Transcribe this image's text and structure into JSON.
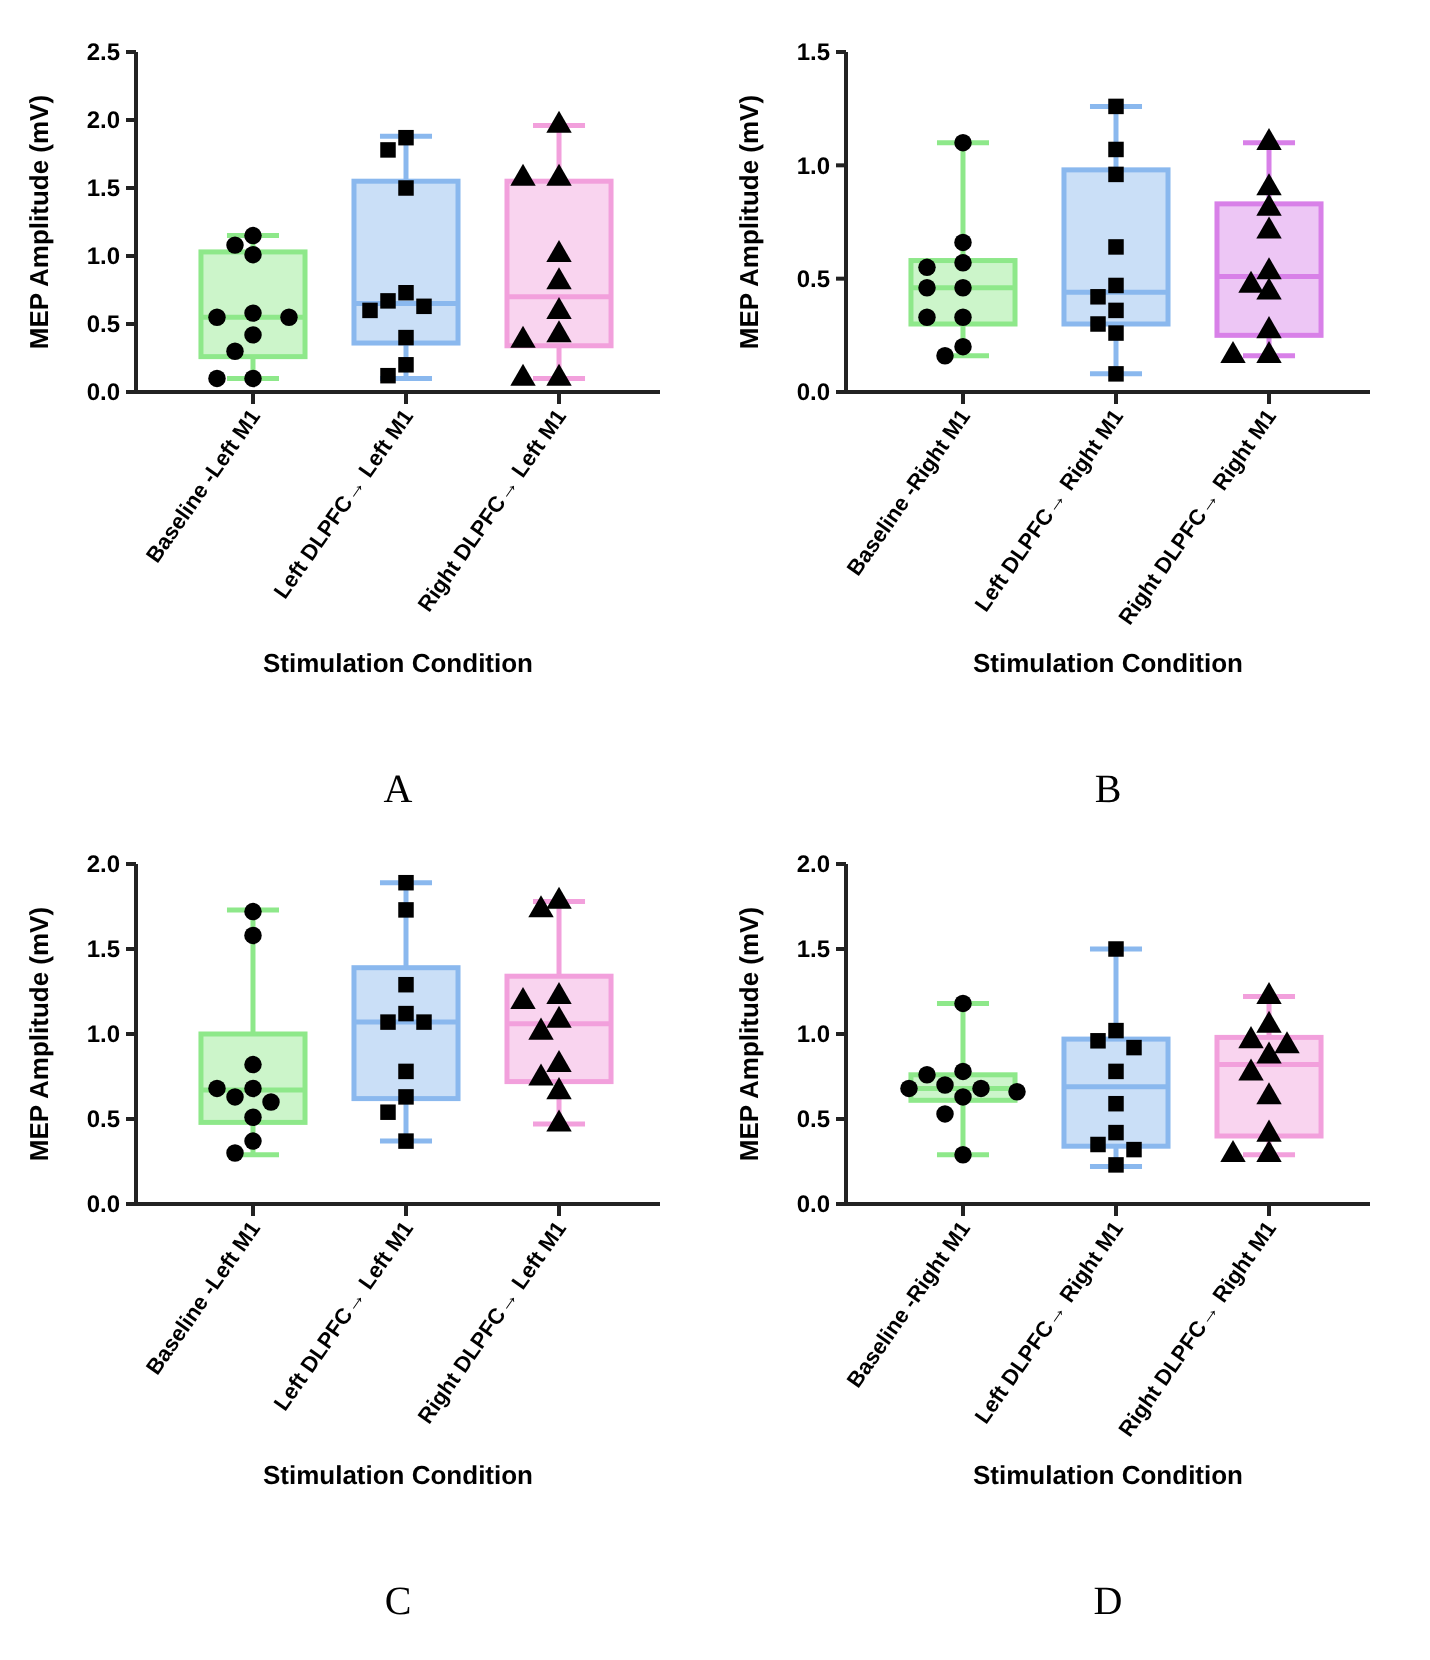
{
  "chart_data": [
    {
      "type": "box",
      "categories": [
        "Baseline -Left M1",
        "Left DLPFC→ Left M1",
        "Right DLPFC→ Left M1"
      ],
      "ylabel": "MEP Amplitude (mV)",
      "xlabel": "Stimulation Condition",
      "annotations": [
        "A"
      ],
      "ylim": [
        0,
        2.5
      ],
      "yticks": [
        {
          "value": 0,
          "label": "0.0"
        },
        {
          "value": 0.5,
          "label": "0.5"
        },
        {
          "value": 1,
          "label": "1.0"
        },
        {
          "value": 1.5,
          "label": "1.5"
        },
        {
          "value": 2,
          "label": "2.0"
        },
        {
          "value": 2.5,
          "label": "2.5"
        }
      ],
      "series": [
        {
          "type": "box",
          "colors": [
            "#8ee88a",
            "#8ab8ee",
            "#f2a0dc"
          ],
          "boxes": [
            {
              "low": 0.1,
              "q1": 0.26,
              "median": 0.55,
              "q3": 1.03,
              "high": 1.15
            },
            {
              "low": 0.1,
              "q1": 0.36,
              "median": 0.65,
              "q3": 1.55,
              "high": 1.88
            },
            {
              "low": 0.1,
              "q1": 0.34,
              "median": 0.7,
              "q3": 1.55,
              "high": 1.96
            }
          ]
        },
        {
          "type": "scatter",
          "marker": "circle",
          "color": "#000000",
          "x": [
            "Baseline -Left M1",
            "Baseline -Left M1",
            "Baseline -Left M1",
            "Baseline -Left M1",
            "Baseline -Left M1",
            "Baseline -Left M1",
            "Baseline -Left M1",
            "Baseline -Left M1",
            "Baseline -Left M1",
            "Baseline -Left M1"
          ],
          "values": [
            1.15,
            1.08,
            1.01,
            0.58,
            0.55,
            0.55,
            0.42,
            0.3,
            0.1,
            0.1
          ]
        },
        {
          "type": "scatter",
          "marker": "square",
          "color": "#000000",
          "x": [
            "Left DLPFC→ Left M1",
            "Left DLPFC→ Left M1",
            "Left DLPFC→ Left M1",
            "Left DLPFC→ Left M1",
            "Left DLPFC→ Left M1",
            "Left DLPFC→ Left M1",
            "Left DLPFC→ Left M1",
            "Left DLPFC→ Left M1",
            "Left DLPFC→ Left M1",
            "Left DLPFC→ Left M1"
          ],
          "values": [
            1.87,
            1.78,
            1.5,
            0.73,
            0.67,
            0.63,
            0.6,
            0.4,
            0.2,
            0.12
          ]
        },
        {
          "type": "scatter",
          "marker": "triangle",
          "color": "#000000",
          "x": [
            "Right DLPFC→ Left M1",
            "Right DLPFC→ Left M1",
            "Right DLPFC→ Left M1",
            "Right DLPFC→ Left M1",
            "Right DLPFC→ Left M1",
            "Right DLPFC→ Left M1",
            "Right DLPFC→ Left M1",
            "Right DLPFC→ Left M1",
            "Right DLPFC→ Left M1",
            "Right DLPFC→ Left M1"
          ],
          "values": [
            1.96,
            1.57,
            1.57,
            1.01,
            0.81,
            0.59,
            0.42,
            0.38,
            0.1,
            0.1
          ]
        }
      ]
    },
    {
      "type": "box",
      "categories": [
        "Baseline -Right M1",
        "Left DLPFC→ Right M1",
        "Right DLPFC→ Right M1"
      ],
      "ylabel": "MEP Amplitude (mV)",
      "xlabel": "Stimulation Condition",
      "annotations": [
        "B"
      ],
      "ylim": [
        0,
        1.5
      ],
      "yticks": [
        {
          "value": 0,
          "label": "0.0"
        },
        {
          "value": 0.5,
          "label": "0.5"
        },
        {
          "value": 1,
          "label": "1.0"
        },
        {
          "value": 1.5,
          "label": "1.5"
        }
      ],
      "series": [
        {
          "type": "box",
          "colors": [
            "#8ee88a",
            "#8ab8ee",
            "#d880e8"
          ],
          "boxes": [
            {
              "low": 0.16,
              "q1": 0.3,
              "median": 0.46,
              "q3": 0.58,
              "high": 1.1
            },
            {
              "low": 0.08,
              "q1": 0.3,
              "median": 0.44,
              "q3": 0.98,
              "high": 1.26
            },
            {
              "low": 0.16,
              "q1": 0.25,
              "median": 0.51,
              "q3": 0.83,
              "high": 1.1
            }
          ]
        },
        {
          "type": "scatter",
          "marker": "circle",
          "color": "#000000",
          "x": [
            "Baseline -Right M1",
            "Baseline -Right M1",
            "Baseline -Right M1",
            "Baseline -Right M1",
            "Baseline -Right M1",
            "Baseline -Right M1",
            "Baseline -Right M1",
            "Baseline -Right M1",
            "Baseline -Right M1",
            "Baseline -Right M1"
          ],
          "values": [
            1.1,
            0.66,
            0.57,
            0.55,
            0.46,
            0.46,
            0.33,
            0.33,
            0.2,
            0.16
          ]
        },
        {
          "type": "scatter",
          "marker": "square",
          "color": "#000000",
          "x": [
            "Left DLPFC→ Right M1",
            "Left DLPFC→ Right M1",
            "Left DLPFC→ Right M1",
            "Left DLPFC→ Right M1",
            "Left DLPFC→ Right M1",
            "Left DLPFC→ Right M1",
            "Left DLPFC→ Right M1",
            "Left DLPFC→ Right M1",
            "Left DLPFC→ Right M1",
            "Left DLPFC→ Right M1"
          ],
          "values": [
            1.26,
            1.07,
            0.96,
            0.64,
            0.47,
            0.42,
            0.36,
            0.3,
            0.26,
            0.08
          ]
        },
        {
          "type": "scatter",
          "marker": "triangle",
          "color": "#000000",
          "x": [
            "Right DLPFC→ Right M1",
            "Right DLPFC→ Right M1",
            "Right DLPFC→ Right M1",
            "Right DLPFC→ Right M1",
            "Right DLPFC→ Right M1",
            "Right DLPFC→ Right M1",
            "Right DLPFC→ Right M1",
            "Right DLPFC→ Right M1",
            "Right DLPFC→ Right M1",
            "Right DLPFC→ Right M1"
          ],
          "values": [
            1.1,
            0.9,
            0.81,
            0.71,
            0.53,
            0.47,
            0.44,
            0.27,
            0.16,
            0.16
          ]
        }
      ]
    },
    {
      "type": "box",
      "categories": [
        "Baseline -Left M1",
        "Left DLPFC→ Left M1",
        "Right DLPFC→ Left M1"
      ],
      "ylabel": "MEP Amplitude (mV)",
      "xlabel": "Stimulation Condition",
      "annotations": [
        "C"
      ],
      "ylim": [
        0,
        2
      ],
      "yticks": [
        {
          "value": 0,
          "label": "0.0"
        },
        {
          "value": 0.5,
          "label": "0.5"
        },
        {
          "value": 1,
          "label": "1.0"
        },
        {
          "value": 1.5,
          "label": "1.5"
        },
        {
          "value": 2,
          "label": "2.0"
        }
      ],
      "series": [
        {
          "type": "box",
          "colors": [
            "#8ee88a",
            "#8ab8ee",
            "#f2a0dc"
          ],
          "boxes": [
            {
              "low": 0.29,
              "q1": 0.48,
              "median": 0.67,
              "q3": 1.0,
              "high": 1.73
            },
            {
              "low": 0.37,
              "q1": 0.62,
              "median": 1.07,
              "q3": 1.39,
              "high": 1.89
            },
            {
              "low": 0.47,
              "q1": 0.72,
              "median": 1.06,
              "q3": 1.34,
              "high": 1.78
            }
          ]
        },
        {
          "type": "scatter",
          "marker": "circle",
          "color": "#000000",
          "x": [
            "Baseline -Left M1",
            "Baseline -Left M1",
            "Baseline -Left M1",
            "Baseline -Left M1",
            "Baseline -Left M1",
            "Baseline -Left M1",
            "Baseline -Left M1",
            "Baseline -Left M1",
            "Baseline -Left M1",
            "Baseline -Left M1"
          ],
          "values": [
            1.72,
            1.58,
            0.82,
            0.68,
            0.68,
            0.63,
            0.6,
            0.51,
            0.37,
            0.3
          ]
        },
        {
          "type": "scatter",
          "marker": "square",
          "color": "#000000",
          "x": [
            "Left DLPFC→ Left M1",
            "Left DLPFC→ Left M1",
            "Left DLPFC→ Left M1",
            "Left DLPFC→ Left M1",
            "Left DLPFC→ Left M1",
            "Left DLPFC→ Left M1",
            "Left DLPFC→ Left M1",
            "Left DLPFC→ Left M1",
            "Left DLPFC→ Left M1",
            "Left DLPFC→ Left M1"
          ],
          "values": [
            1.89,
            1.73,
            1.29,
            1.12,
            1.07,
            1.07,
            0.78,
            0.63,
            0.54,
            0.37
          ]
        },
        {
          "type": "scatter",
          "marker": "triangle",
          "color": "#000000",
          "x": [
            "Right DLPFC→ Left M1",
            "Right DLPFC→ Left M1",
            "Right DLPFC→ Left M1",
            "Right DLPFC→ Left M1",
            "Right DLPFC→ Left M1",
            "Right DLPFC→ Left M1",
            "Right DLPFC→ Left M1",
            "Right DLPFC→ Left M1",
            "Right DLPFC→ Left M1",
            "Right DLPFC→ Left M1"
          ],
          "values": [
            1.78,
            1.73,
            1.22,
            1.19,
            1.08,
            1.01,
            0.82,
            0.74,
            0.66,
            0.47
          ]
        }
      ]
    },
    {
      "type": "box",
      "categories": [
        "Baseline -Right M1",
        "Left DLPFC→ Right M1",
        "Right DLPFC→ Right M1"
      ],
      "ylabel": "MEP Amplitude (mV)",
      "xlabel": "Stimulation Condition",
      "annotations": [
        "D"
      ],
      "ylim": [
        0,
        2
      ],
      "yticks": [
        {
          "value": 0,
          "label": "0.0"
        },
        {
          "value": 0.5,
          "label": "0.5"
        },
        {
          "value": 1,
          "label": "1.0"
        },
        {
          "value": 1.5,
          "label": "1.5"
        },
        {
          "value": 2,
          "label": "2.0"
        }
      ],
      "series": [
        {
          "type": "box",
          "colors": [
            "#8ee88a",
            "#8ab8ee",
            "#f2a0dc"
          ],
          "boxes": [
            {
              "low": 0.29,
              "q1": 0.61,
              "median": 0.68,
              "q3": 0.76,
              "high": 1.18
            },
            {
              "low": 0.22,
              "q1": 0.34,
              "median": 0.69,
              "q3": 0.97,
              "high": 1.5
            },
            {
              "low": 0.29,
              "q1": 0.4,
              "median": 0.82,
              "q3": 0.98,
              "high": 1.22
            }
          ]
        },
        {
          "type": "scatter",
          "marker": "circle",
          "color": "#000000",
          "x": [
            "Baseline -Right M1",
            "Baseline -Right M1",
            "Baseline -Right M1",
            "Baseline -Right M1",
            "Baseline -Right M1",
            "Baseline -Right M1",
            "Baseline -Right M1",
            "Baseline -Right M1",
            "Baseline -Right M1",
            "Baseline -Right M1"
          ],
          "values": [
            1.18,
            0.78,
            0.76,
            0.7,
            0.68,
            0.68,
            0.66,
            0.63,
            0.53,
            0.29
          ]
        },
        {
          "type": "scatter",
          "marker": "square",
          "color": "#000000",
          "x": [
            "Left DLPFC→ Right M1",
            "Left DLPFC→ Right M1",
            "Left DLPFC→ Right M1",
            "Left DLPFC→ Right M1",
            "Left DLPFC→ Right M1",
            "Left DLPFC→ Right M1",
            "Left DLPFC→ Right M1",
            "Left DLPFC→ Right M1",
            "Left DLPFC→ Right M1",
            "Left DLPFC→ Right M1"
          ],
          "values": [
            1.5,
            1.02,
            0.96,
            0.92,
            0.78,
            0.59,
            0.42,
            0.35,
            0.32,
            0.23
          ]
        },
        {
          "type": "scatter",
          "marker": "triangle",
          "color": "#000000",
          "x": [
            "Right DLPFC→ Right M1",
            "Right DLPFC→ Right M1",
            "Right DLPFC→ Right M1",
            "Right DLPFC→ Right M1",
            "Right DLPFC→ Right M1",
            "Right DLPFC→ Right M1",
            "Right DLPFC→ Right M1",
            "Right DLPFC→ Right M1",
            "Right DLPFC→ Right M1",
            "Right DLPFC→ Right M1"
          ],
          "values": [
            1.22,
            1.05,
            0.96,
            0.93,
            0.87,
            0.77,
            0.63,
            0.41,
            0.29,
            0.29
          ]
        }
      ]
    }
  ]
}
